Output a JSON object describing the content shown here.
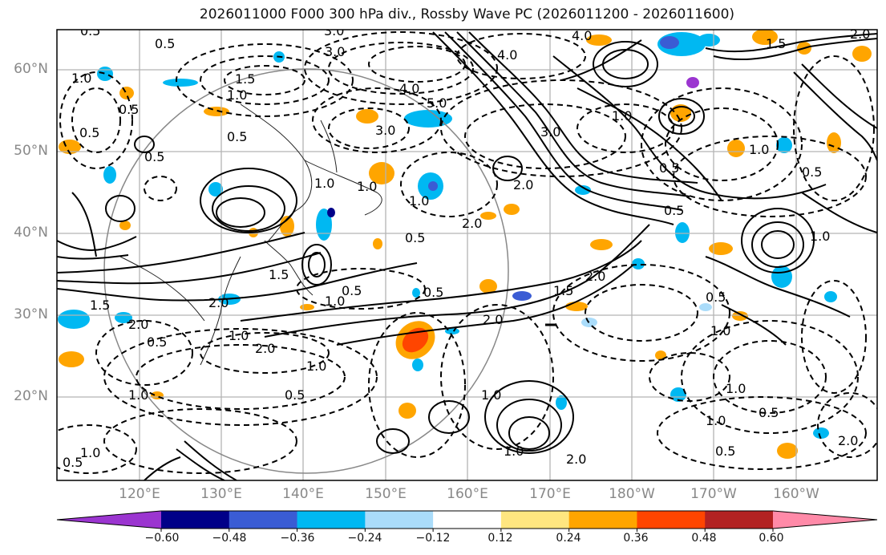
{
  "title": "2026011000 F000 300 hPa div., Rossby Wave PC (2026011200 - 2026011600)",
  "lat_labels": [
    "60°N",
    "50°N",
    "40°N",
    "30°N",
    "20°N"
  ],
  "lon_labels": [
    "120°E",
    "130°E",
    "140°E",
    "150°E",
    "160°E",
    "170°E",
    "180°W",
    "170°W",
    "160°W"
  ],
  "colorbar": {
    "ticks": [
      "−0.60",
      "−0.48",
      "−0.36",
      "−0.24",
      "−0.12",
      "0.12",
      "0.24",
      "0.36",
      "0.48",
      "0.60"
    ],
    "colors": [
      "#9b35d0",
      "#000088",
      "#3a5cd4",
      "#00b8f2",
      "#aadcfa",
      "#ffffff",
      "#ffe680",
      "#ffa500",
      "#ff4500",
      "#b22222",
      "#ff8aa8"
    ]
  },
  "contour_labels": [
    "0.5",
    "3.0",
    "4.0",
    "0.5",
    "1.5",
    "1.0",
    "0.5",
    "0.5",
    "1.0",
    "0.5",
    "0.5",
    "3.0",
    "4.0",
    "5.0",
    "3.0",
    "4.0",
    "1.0",
    "3.0",
    "0.5",
    "1.0",
    "2.0",
    "2.0",
    "1.5",
    "1.0",
    "1.0",
    "2.0",
    "2.0",
    "0.5",
    "0.5",
    "1.0",
    "1.0",
    "0.5",
    "2.0",
    "1.5",
    "1.5",
    "2.0",
    "2.0",
    "1.0",
    "1.0",
    "0.5",
    "1.0",
    "0.5",
    "1.0",
    "2.0",
    "0.5",
    "0.5",
    "1.0",
    "1.0",
    "0.5",
    "0.5",
    "1.0",
    "0.5",
    "2.0",
    "1.0",
    "0.5",
    "1.0",
    "1.5",
    "2.0",
    "1.0"
  ]
}
